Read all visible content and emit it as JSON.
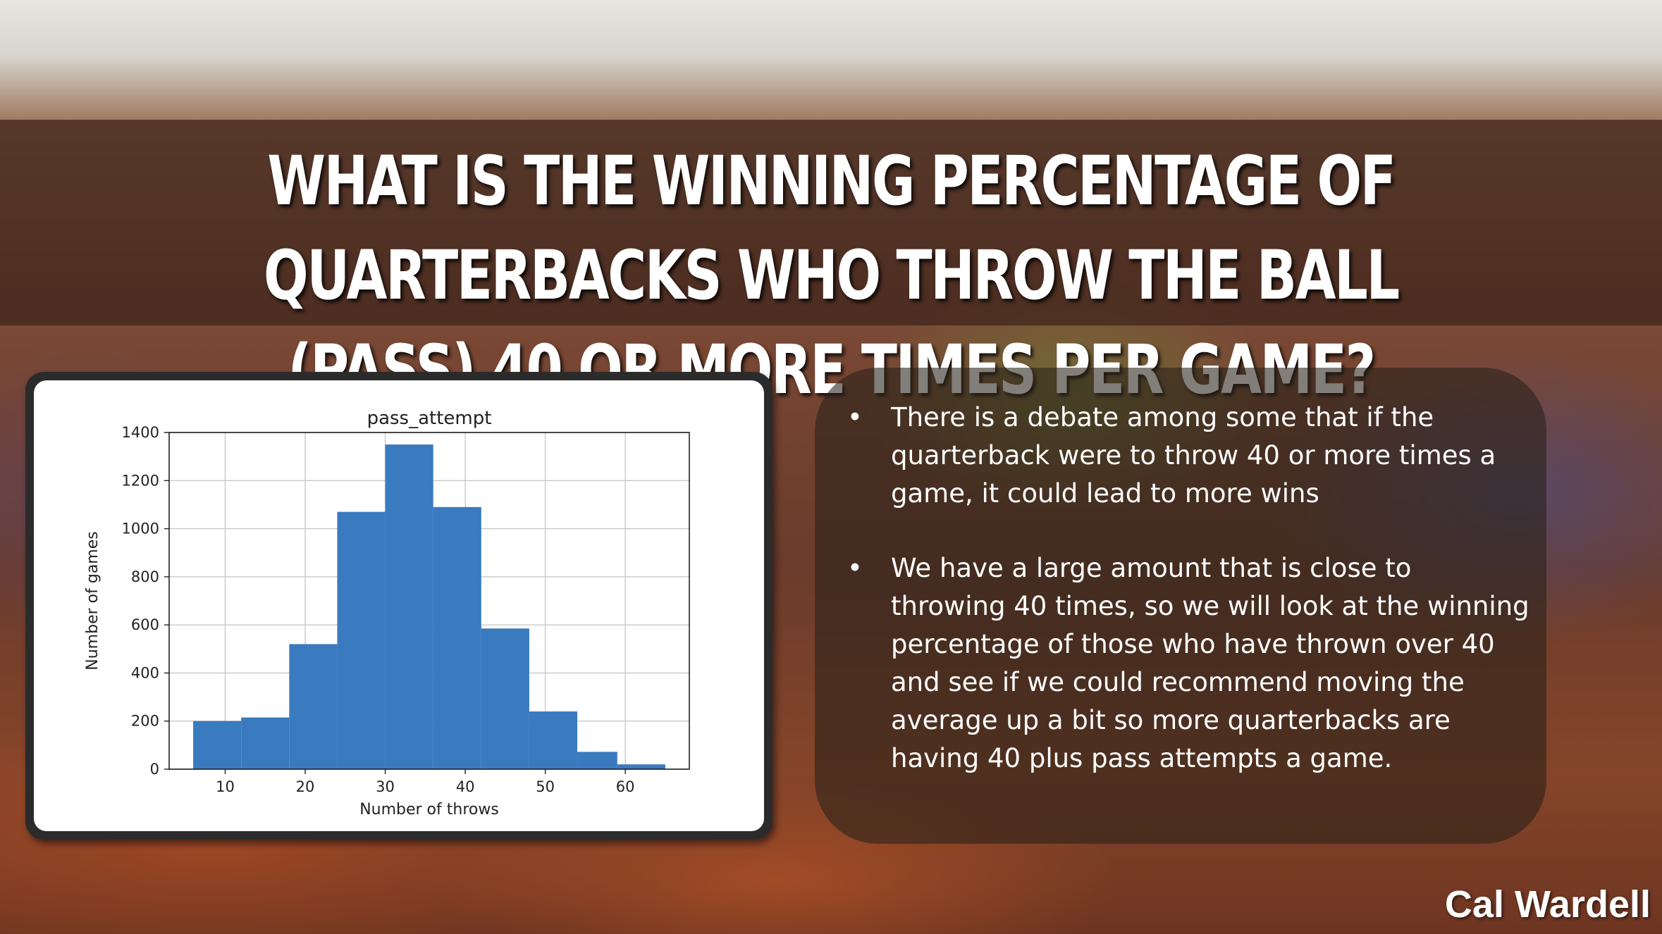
{
  "slide": {
    "title": "What is the winning percentage of quarterbacks who throw the ball (pass) 40 or more times per game?",
    "author": "Cal Wardell",
    "bullets": [
      "There is a debate among some that if the quarterback were to throw 40 or more times a game, it could lead to more wins",
      "We have a large amount that is close to throwing 40 times, so we will look at the winning percentage of those who have thrown over 40 and see if we could recommend moving the average up a bit so more quarterbacks are having 40 plus pass attempts a game."
    ]
  },
  "colors": {
    "bar": "#3a7abf",
    "grid": "#c8c8c8",
    "title_band": "#41261c"
  },
  "chart_data": {
    "type": "bar",
    "title": "pass_attempt",
    "xlabel": "Number of throws",
    "ylabel": "Number of games",
    "xlim": [
      3,
      68
    ],
    "ylim": [
      0,
      1400
    ],
    "xticks": [
      10,
      20,
      30,
      40,
      50,
      60
    ],
    "yticks": [
      0,
      200,
      400,
      600,
      800,
      1000,
      1200,
      1400
    ],
    "grid": true,
    "bins": [
      {
        "x0": 6,
        "x1": 12,
        "value": 200
      },
      {
        "x0": 12,
        "x1": 18,
        "value": 215
      },
      {
        "x0": 18,
        "x1": 24,
        "value": 520
      },
      {
        "x0": 24,
        "x1": 30,
        "value": 1070
      },
      {
        "x0": 30,
        "x1": 36,
        "value": 1350
      },
      {
        "x0": 36,
        "x1": 42,
        "value": 1090
      },
      {
        "x0": 42,
        "x1": 48,
        "value": 585
      },
      {
        "x0": 48,
        "x1": 54,
        "value": 240
      },
      {
        "x0": 54,
        "x1": 59,
        "value": 72
      },
      {
        "x0": 59,
        "x1": 65,
        "value": 20
      }
    ]
  }
}
